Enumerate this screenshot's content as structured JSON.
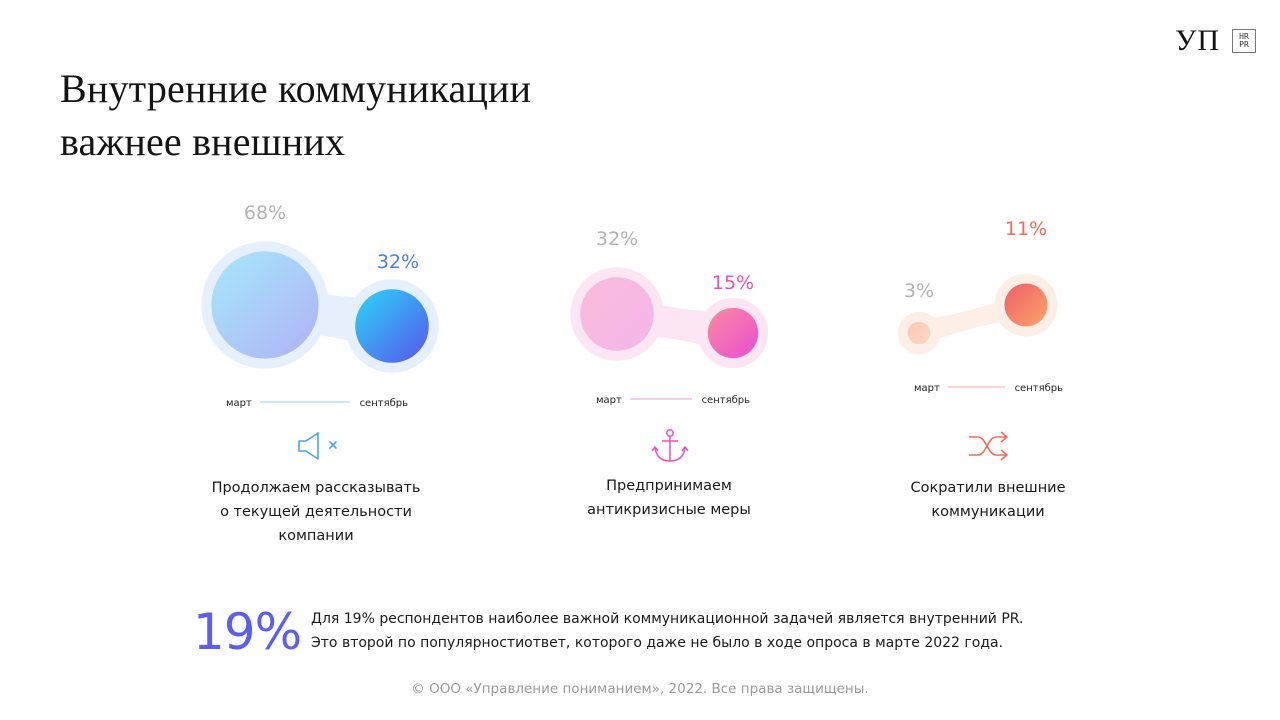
{
  "title": {
    "line1": "Внутренние коммуникации",
    "line2": "важнее внешних"
  },
  "logos": {
    "brand": "УП",
    "badge_top": "HR",
    "badge_bottom": "PR"
  },
  "chart_data": {
    "type": "paired-bubble",
    "start_label": "март",
    "end_label": "сентябрь",
    "groups": [
      {
        "name": "Продолжаем рассказывать о текущей деятельности компании",
        "march": 68,
        "september": 32,
        "march_label": "68%",
        "september_label": "32%",
        "icon": "speaker-muted-icon",
        "colors": {
          "march_label": "#b3b3b3",
          "sept_label": "#4d7cf0",
          "from": "#a6e8fb",
          "to": "#b0b2f5",
          "dot_from": "#28d7f7",
          "dot_to": "#5b54ec",
          "halo": "#e6f0fc",
          "line": "#8ed6ee"
        }
      },
      {
        "name": "Предпринимаем антикризисные меры",
        "march": 32,
        "september": 15,
        "march_label": "32%",
        "september_label": "15%",
        "icon": "anchor-icon",
        "colors": {
          "march_label": "#b3b3b3",
          "sept_label": "#ee4fb8",
          "from": "#fcbbdb",
          "to": "#f2b7e9",
          "dot_from": "#fd8aa0",
          "dot_to": "#e64fd2",
          "halo": "#fde6f3",
          "line": "#e99ad8"
        }
      },
      {
        "name": "Сократили внешние коммуникации",
        "march": 3,
        "september": 11,
        "march_label": "3%",
        "september_label": "11%",
        "icon": "shuffle-icon",
        "colors": {
          "march_label": "#b3b3b3",
          "sept_label": "#f36c56",
          "from": "#fdc8b3",
          "to": "#fbd8c6",
          "dot_from": "#ee5d68",
          "dot_to": "#fda66b",
          "halo": "#fdeee6",
          "line": "#f6b19f"
        }
      }
    ]
  },
  "captions": [
    {
      "line1": "Продолжаем рассказывать",
      "line2": "о текущей деятельности",
      "line3": "компании"
    },
    {
      "line1": "Предпринимаем",
      "line2": "антикризисные меры"
    },
    {
      "line1": "Сократили внешние",
      "line2": "коммуникации"
    }
  ],
  "highlight": {
    "value": "19%",
    "line1": "Для 19% респондентов наиболее важной коммуникационной задачей является внутренний PR.",
    "line2": "Это второй по популярностиответ, которого даже не было в ходе опроса в марте 2022 года."
  },
  "footer": "© ООО «Управление пониманием», 2022. Все права защищены."
}
